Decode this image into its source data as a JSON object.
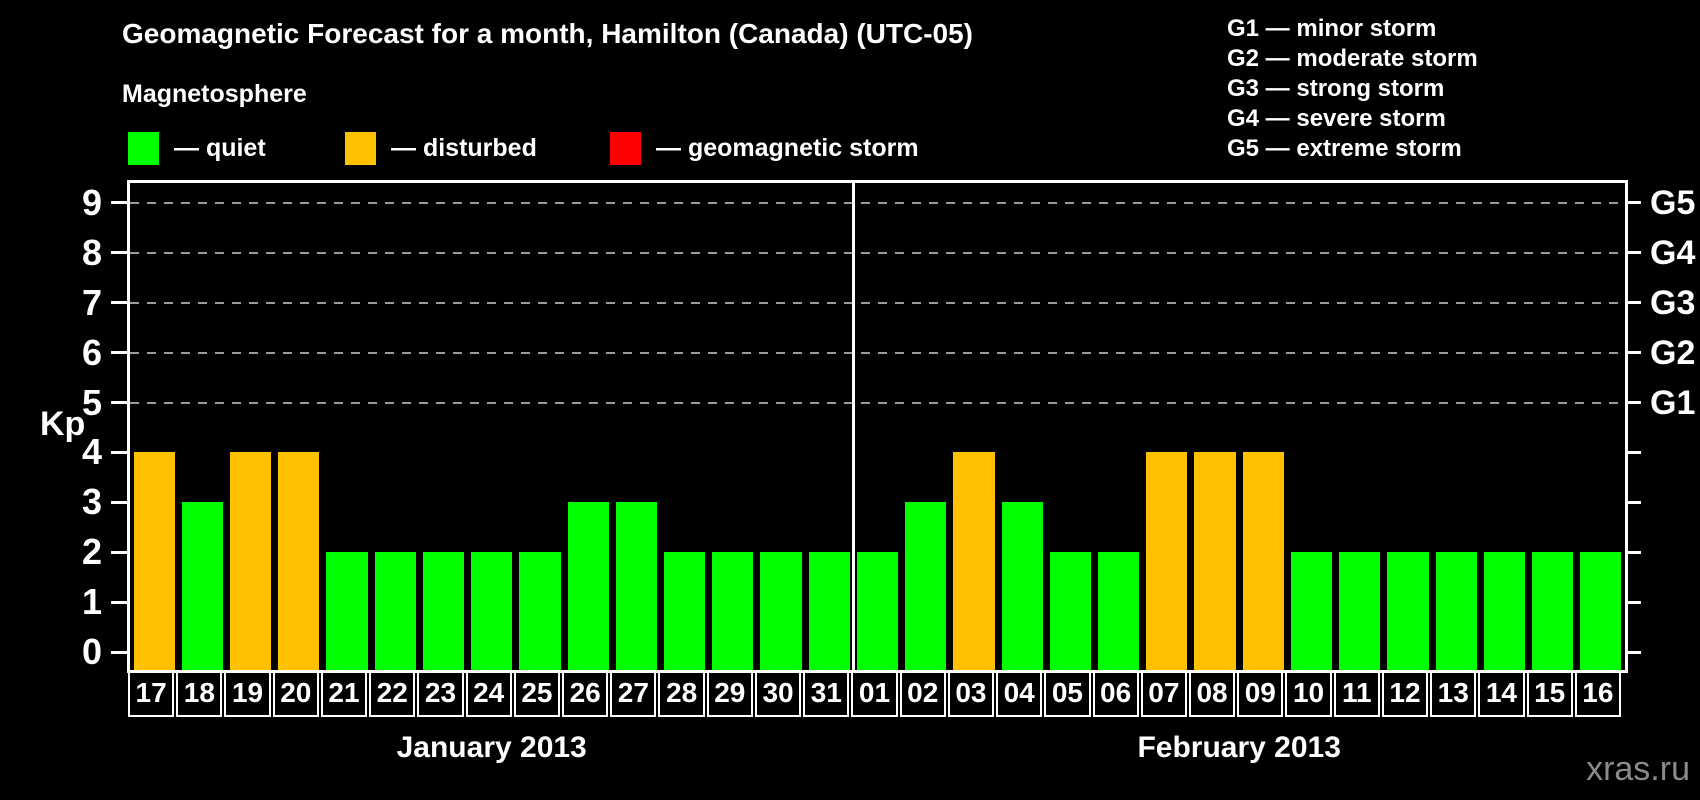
{
  "watermark": "xras.ru",
  "chart_data": {
    "type": "bar",
    "title": "Geomagnetic Forecast for a month, Hamilton (Canada) (UTC-05)",
    "ylabel": "Kp",
    "ylim": [
      -0.4,
      9.4
    ],
    "yticks": [
      0,
      1,
      2,
      3,
      4,
      5,
      6,
      7,
      8,
      9
    ],
    "grid_kp": [
      5,
      6,
      7,
      8,
      9
    ],
    "grid_color": "#9a9a9a",
    "background_color": "#000000",
    "right_axis": [
      {
        "kp": 5,
        "label": "G1"
      },
      {
        "kp": 6,
        "label": "G2"
      },
      {
        "kp": 7,
        "label": "G3"
      },
      {
        "kp": 8,
        "label": "G4"
      },
      {
        "kp": 9,
        "label": "G5"
      }
    ],
    "legend": {
      "heading": "Magnetosphere",
      "items": [
        {
          "status": "quiet",
          "label": "— quiet",
          "color": "#00ff00"
        },
        {
          "status": "disturbed",
          "label": "— disturbed",
          "color": "#ffc000"
        },
        {
          "status": "storm",
          "label": "— geomagnetic storm",
          "color": "#ff0000"
        }
      ]
    },
    "storm_scale": [
      "G1 — minor storm",
      "G2 — moderate storm",
      "G3 — strong storm",
      "G4 — severe storm",
      "G5 — extreme storm"
    ],
    "months": [
      {
        "label": "January 2013",
        "days": [
          {
            "d": "17",
            "kp": 4,
            "status": "disturbed"
          },
          {
            "d": "18",
            "kp": 3,
            "status": "quiet"
          },
          {
            "d": "19",
            "kp": 4,
            "status": "disturbed"
          },
          {
            "d": "20",
            "kp": 4,
            "status": "disturbed"
          },
          {
            "d": "21",
            "kp": 2,
            "status": "quiet"
          },
          {
            "d": "22",
            "kp": 2,
            "status": "quiet"
          },
          {
            "d": "23",
            "kp": 2,
            "status": "quiet"
          },
          {
            "d": "24",
            "kp": 2,
            "status": "quiet"
          },
          {
            "d": "25",
            "kp": 2,
            "status": "quiet"
          },
          {
            "d": "26",
            "kp": 3,
            "status": "quiet"
          },
          {
            "d": "27",
            "kp": 3,
            "status": "quiet"
          },
          {
            "d": "28",
            "kp": 2,
            "status": "quiet"
          },
          {
            "d": "29",
            "kp": 2,
            "status": "quiet"
          },
          {
            "d": "30",
            "kp": 2,
            "status": "quiet"
          },
          {
            "d": "31",
            "kp": 2,
            "status": "quiet"
          }
        ]
      },
      {
        "label": "February 2013",
        "days": [
          {
            "d": "01",
            "kp": 2,
            "status": "quiet"
          },
          {
            "d": "02",
            "kp": 3,
            "status": "quiet"
          },
          {
            "d": "03",
            "kp": 4,
            "status": "disturbed"
          },
          {
            "d": "04",
            "kp": 3,
            "status": "quiet"
          },
          {
            "d": "05",
            "kp": 2,
            "status": "quiet"
          },
          {
            "d": "06",
            "kp": 2,
            "status": "quiet"
          },
          {
            "d": "07",
            "kp": 4,
            "status": "disturbed"
          },
          {
            "d": "08",
            "kp": 4,
            "status": "disturbed"
          },
          {
            "d": "09",
            "kp": 4,
            "status": "disturbed"
          },
          {
            "d": "10",
            "kp": 2,
            "status": "quiet"
          },
          {
            "d": "11",
            "kp": 2,
            "status": "quiet"
          },
          {
            "d": "12",
            "kp": 2,
            "status": "quiet"
          },
          {
            "d": "13",
            "kp": 2,
            "status": "quiet"
          },
          {
            "d": "14",
            "kp": 2,
            "status": "quiet"
          },
          {
            "d": "15",
            "kp": 2,
            "status": "quiet"
          },
          {
            "d": "16",
            "kp": 2,
            "status": "quiet"
          }
        ]
      }
    ]
  }
}
